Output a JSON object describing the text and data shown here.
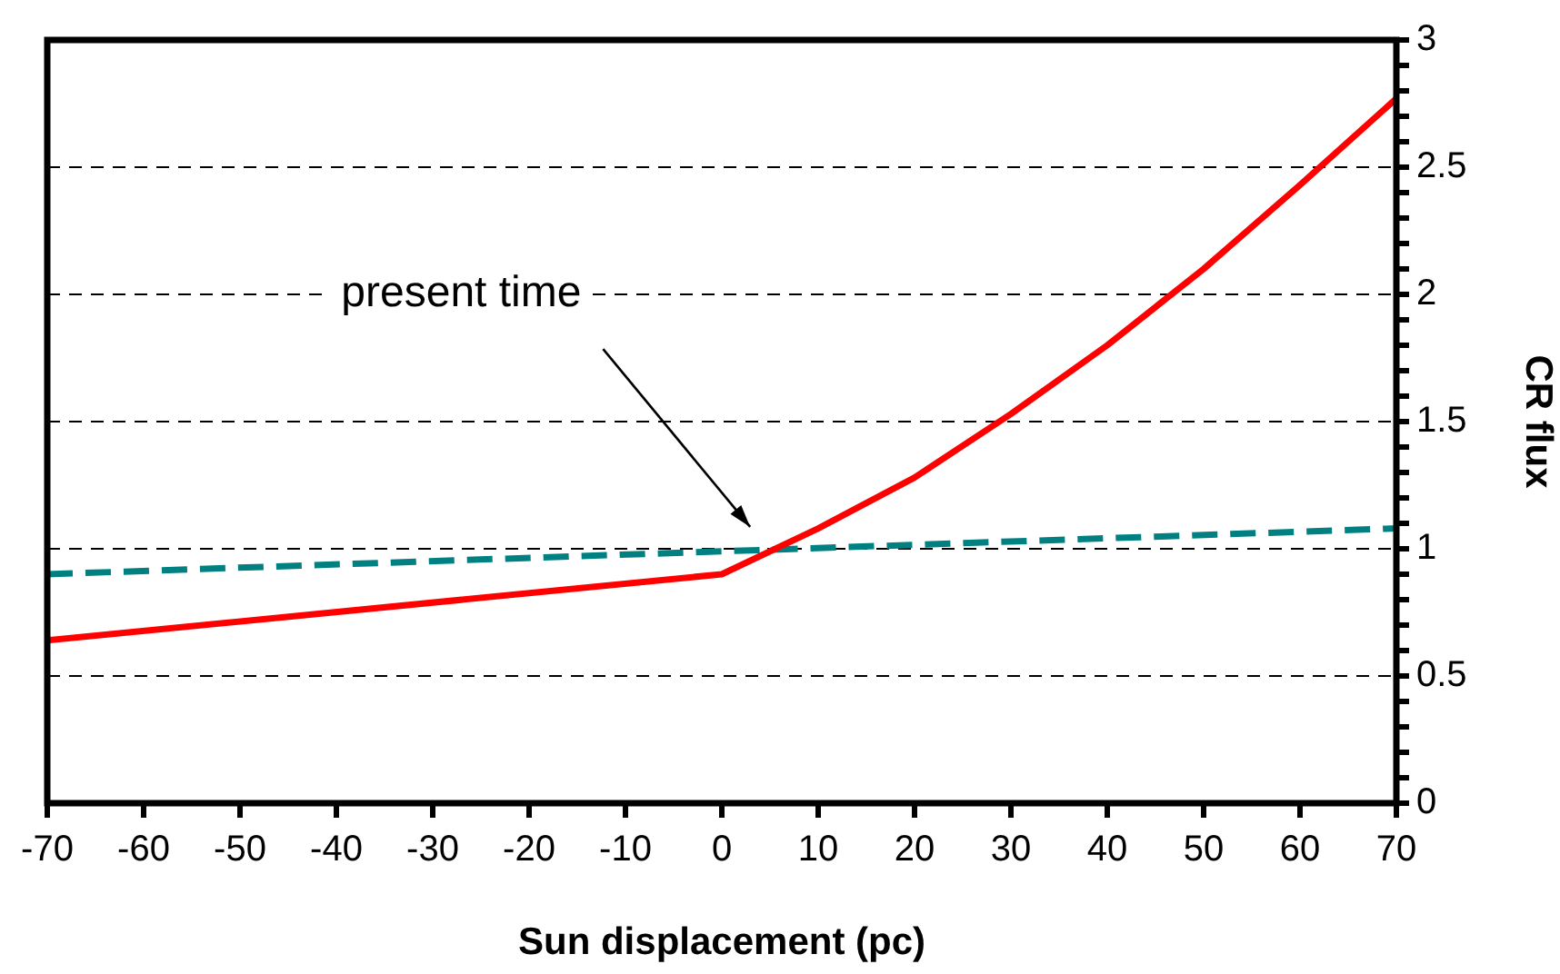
{
  "chart_data": {
    "type": "line",
    "xlabel": "Sun displacement (pc)",
    "ylabel": "CR flux",
    "series": [
      {
        "color": "#ff0000",
        "line_style": "solid",
        "x": [
          -70,
          0,
          10,
          20,
          30,
          40,
          50,
          60,
          70
        ],
        "values": [
          0.64,
          0.9,
          1.08,
          1.28,
          1.53,
          1.8,
          2.1,
          2.43,
          2.77
        ]
      },
      {
        "color": "#008080",
        "line_style": "dashed",
        "x": [
          -70,
          0,
          70
        ],
        "values": [
          0.9,
          0.99,
          1.08
        ]
      }
    ],
    "xlim": [
      -70,
      70
    ],
    "xticks": [
      -70,
      -60,
      -50,
      -40,
      -30,
      -20,
      -10,
      0,
      10,
      20,
      30,
      40,
      50,
      60,
      70
    ],
    "ylim": [
      0,
      3
    ],
    "yticks": [
      0,
      {
        "value": 0.1,
        "label": null
      },
      {
        "value": 0.2,
        "label": null
      },
      {
        "value": 0.3,
        "label": null
      },
      {
        "value": 0.4,
        "label": null
      },
      0.5,
      {
        "value": 0.6,
        "label": null
      },
      {
        "value": 0.7,
        "label": null
      },
      {
        "value": 0.8,
        "label": null
      },
      {
        "value": 0.9,
        "label": null
      },
      1,
      {
        "value": 1.1,
        "label": null
      },
      {
        "value": 1.2,
        "label": null
      },
      {
        "value": 1.3,
        "label": null
      },
      {
        "value": 1.4,
        "label": null
      },
      1.5,
      {
        "value": 1.6,
        "label": null
      },
      {
        "value": 1.7,
        "label": null
      },
      {
        "value": 1.8,
        "label": null
      },
      {
        "value": 1.9,
        "label": null
      },
      2,
      {
        "value": 2.1,
        "label": null
      },
      {
        "value": 2.2,
        "label": null
      },
      {
        "value": 2.3,
        "label": null
      },
      {
        "value": 2.4,
        "label": null
      },
      2.5,
      {
        "value": 2.6,
        "label": null
      },
      {
        "value": 2.7,
        "label": null
      },
      {
        "value": 2.8,
        "label": null
      },
      {
        "value": 2.9,
        "label": null
      },
      3
    ],
    "grid": "y",
    "legend": false,
    "marker": "none",
    "annotations": [
      "present time"
    ]
  }
}
